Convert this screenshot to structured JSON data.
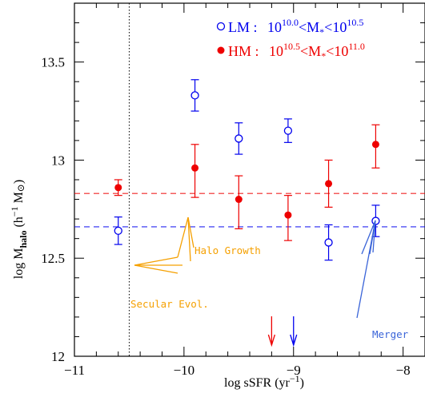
{
  "chart_data": {
    "type": "scatter",
    "xlabel": {
      "main": "log sSFR (yr",
      "sup": "−1",
      "end": ")"
    },
    "ylabel": {
      "pre": "log M",
      "sub": "halo",
      "mid": " (h",
      "sup": "−1",
      "post": " M",
      "sun": "⊙",
      "end": ")"
    },
    "xlim": [
      -11,
      -7.8
    ],
    "ylim": [
      12,
      13.8
    ],
    "xticks": [
      -11,
      -10,
      -9,
      -8
    ],
    "xtick_labels": [
      "−11",
      "−10",
      "−9",
      "−8"
    ],
    "yticks": [
      12,
      12.5,
      13,
      13.5
    ],
    "ytick_labels": [
      "12",
      "12.5",
      "13",
      "13.5"
    ],
    "grid": false,
    "legend_position": "top-right",
    "series": [
      {
        "key": "LM",
        "legend": {
          "name": "LM",
          "sep": " : ",
          "a": "10",
          "a_exp": "10.0",
          "mid": "<M",
          "mid_sub": "*",
          "lt": "<",
          "b": "10",
          "b_exp": "10.5"
        },
        "color": "#0000ee",
        "marker": "open-circle",
        "mean_line": 12.66,
        "points": [
          {
            "x": -10.6,
            "y": 12.64,
            "yerr_low": 0.07,
            "yerr_high": 0.07
          },
          {
            "x": -9.9,
            "y": 13.33,
            "yerr_low": 0.08,
            "yerr_high": 0.08
          },
          {
            "x": -9.5,
            "y": 13.11,
            "yerr_low": 0.08,
            "yerr_high": 0.08
          },
          {
            "x": -9.05,
            "y": 13.15,
            "yerr_low": 0.06,
            "yerr_high": 0.06
          },
          {
            "x": -8.68,
            "y": 12.58,
            "yerr_low": 0.09,
            "yerr_high": 0.09
          },
          {
            "x": -8.25,
            "y": 12.69,
            "yerr_low": 0.08,
            "yerr_high": 0.08
          }
        ]
      },
      {
        "key": "HM",
        "legend": {
          "name": "HM",
          "sep": " : ",
          "a": "10",
          "a_exp": "10.5",
          "mid": "<M",
          "mid_sub": "*",
          "lt": "<",
          "b": "10",
          "b_exp": "11.0"
        },
        "color": "#ee0000",
        "marker": "filled-circle",
        "mean_line": 12.83,
        "points": [
          {
            "x": -10.6,
            "y": 12.86,
            "yerr_low": 0.04,
            "yerr_high": 0.04
          },
          {
            "x": -9.9,
            "y": 12.96,
            "yerr_low": 0.15,
            "yerr_high": 0.12
          },
          {
            "x": -9.5,
            "y": 12.8,
            "yerr_low": 0.15,
            "yerr_high": 0.12
          },
          {
            "x": -9.05,
            "y": 12.72,
            "yerr_low": 0.13,
            "yerr_high": 0.1
          },
          {
            "x": -8.68,
            "y": 12.88,
            "yerr_low": 0.12,
            "yerr_high": 0.12
          },
          {
            "x": -8.25,
            "y": 13.08,
            "yerr_low": 0.12,
            "yerr_high": 0.1
          }
        ]
      }
    ],
    "vertical_dotted_line_x": -10.5,
    "annotations": [
      {
        "key": "halo_growth",
        "text": "Halo Growth",
        "color": "#f5a000"
      },
      {
        "key": "secular",
        "text": "Secular Evol.",
        "color": "#f5a000"
      },
      {
        "key": "merger",
        "text": "Merger",
        "color": "#3a64d8"
      }
    ],
    "arrows": [
      {
        "key": "red_arrow",
        "x": -9.2,
        "color": "#ee0000"
      },
      {
        "key": "blue_arrow",
        "x": -9.0,
        "color": "#0000ee"
      }
    ]
  }
}
